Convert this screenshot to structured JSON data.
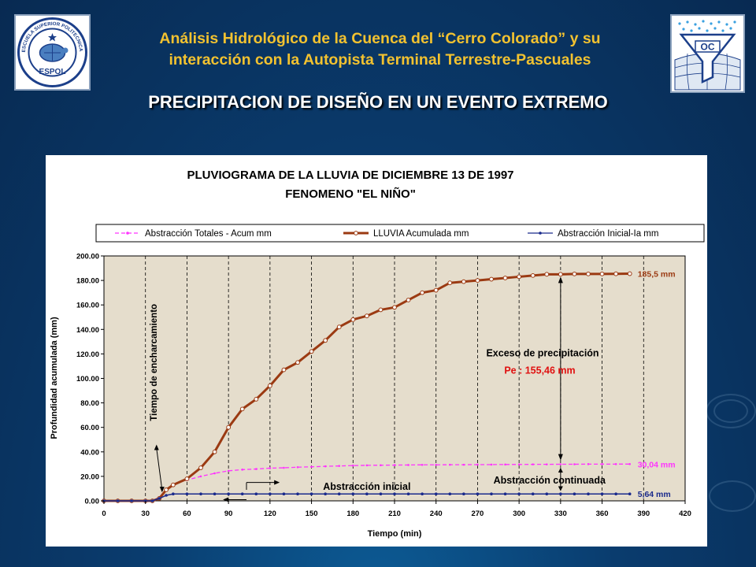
{
  "header": {
    "title_line1": "Análisis Hidrológico de la Cuenca del “Cerro Colorado” y su",
    "title_line2": "interacción con la Autopista Terminal Terrestre-Pascuales",
    "slide_title": "PRECIPITACION DE DISEÑO EN UN EVENTO EXTREMO"
  },
  "logos": {
    "left": {
      "ring_text": "ESCUELA SUPERIOR POLITECNICA DEL LITORAL",
      "name": "ESPOL"
    },
    "right": {
      "text": "OC"
    }
  },
  "colors": {
    "header_text": "#f2c230",
    "plot_bg": "#e5ddcc",
    "rain": "#9b3a12",
    "abs_total": "#ff33ff",
    "abs_initial": "#1a2a8c",
    "annot_red": "#e01010"
  },
  "chart_data": {
    "type": "line",
    "title": "PLUVIOGRAMA DE LA LLUVIA DE DICIEMBRE 13 DE 1997",
    "subtitle": "FENOMENO \"EL NIÑO\"",
    "xlabel": "Tiempo (min)",
    "ylabel": "Profundidad acumulada (mm)",
    "xlim": [
      0,
      420
    ],
    "ylim": [
      0,
      200
    ],
    "x_ticks": [
      "0",
      "30",
      "60",
      "90",
      "120",
      "150",
      "180",
      "210",
      "240",
      "270",
      "300",
      "330",
      "360",
      "390",
      "420"
    ],
    "y_ticks": [
      "0.00",
      "20.00",
      "40.00",
      "60.00",
      "80.00",
      "100.00",
      "120.00",
      "140.00",
      "160.00",
      "180.00",
      "200.00"
    ],
    "grid": "vertical dashed",
    "legend_position": "top",
    "series": [
      {
        "name": "Abstracción Totales - Acum mm",
        "style": "dashed",
        "color": "#ff33ff",
        "x": [
          0,
          10,
          20,
          30,
          35,
          40,
          45,
          50,
          60,
          70,
          80,
          90,
          100,
          110,
          120,
          130,
          140,
          150,
          160,
          170,
          180,
          190,
          200,
          210,
          220,
          230,
          240,
          250,
          260,
          270,
          280,
          290,
          300,
          310,
          320,
          330,
          340,
          350,
          360,
          370,
          380
        ],
        "y": [
          0,
          0,
          0,
          0,
          0,
          3,
          9,
          13.5,
          17,
          20,
          22.5,
          24.5,
          25.5,
          26,
          26.7,
          27,
          27.5,
          27.8,
          28.2,
          28.5,
          28.8,
          29,
          29.1,
          29.2,
          29.3,
          29.4,
          29.4,
          29.5,
          29.5,
          29.6,
          29.6,
          29.7,
          29.7,
          29.8,
          29.8,
          29.9,
          29.9,
          30,
          30,
          30,
          30.04
        ]
      },
      {
        "name": "LLUVIA Acumulada mm",
        "style": "solid",
        "color": "#9b3a12",
        "x": [
          0,
          10,
          20,
          30,
          35,
          40,
          45,
          50,
          60,
          70,
          80,
          90,
          100,
          110,
          120,
          130,
          140,
          150,
          160,
          170,
          180,
          190,
          200,
          210,
          220,
          230,
          240,
          250,
          260,
          270,
          280,
          290,
          300,
          310,
          320,
          330,
          340,
          350,
          360,
          370,
          380
        ],
        "y": [
          0,
          0,
          0,
          0,
          0,
          2,
          9,
          13,
          18,
          27,
          40,
          60,
          75,
          83,
          94,
          107,
          113,
          122,
          131,
          142,
          148,
          151,
          156,
          158,
          164,
          170,
          172,
          178,
          179,
          180,
          181,
          182,
          183,
          184,
          185,
          185,
          185.3,
          185.3,
          185.3,
          185.4,
          185.5
        ]
      },
      {
        "name": "Abstracción Inicial-Ia mm",
        "style": "solid",
        "color": "#1a2a8c",
        "x": [
          0,
          10,
          20,
          30,
          35,
          40,
          45,
          50,
          60,
          70,
          80,
          90,
          100,
          110,
          120,
          130,
          140,
          150,
          160,
          170,
          180,
          190,
          200,
          210,
          220,
          230,
          240,
          250,
          260,
          270,
          280,
          290,
          300,
          310,
          320,
          330,
          340,
          350,
          360,
          370,
          380
        ],
        "y": [
          0,
          0,
          0,
          0,
          0,
          2,
          4.5,
          5.64,
          5.64,
          5.64,
          5.64,
          5.64,
          5.64,
          5.64,
          5.64,
          5.64,
          5.64,
          5.64,
          5.64,
          5.64,
          5.64,
          5.64,
          5.64,
          5.64,
          5.64,
          5.64,
          5.64,
          5.64,
          5.64,
          5.64,
          5.64,
          5.64,
          5.64,
          5.64,
          5.64,
          5.64,
          5.64,
          5.64,
          5.64,
          5.64,
          5.64
        ]
      }
    ],
    "annotations": {
      "rain_end_label": "185,5 mm",
      "abs_total_end_label": "30,04 mm",
      "abs_initial_end_label": "5,64 mm",
      "ponding_time": "Tiempo de encharcamiento",
      "excess_label": "Exceso de precipitación",
      "excess_value": "Pe : 155,46 mm",
      "continued_abstraction": "Abstracción continuada",
      "initial_abstraction": "Abstracción inicial"
    }
  }
}
